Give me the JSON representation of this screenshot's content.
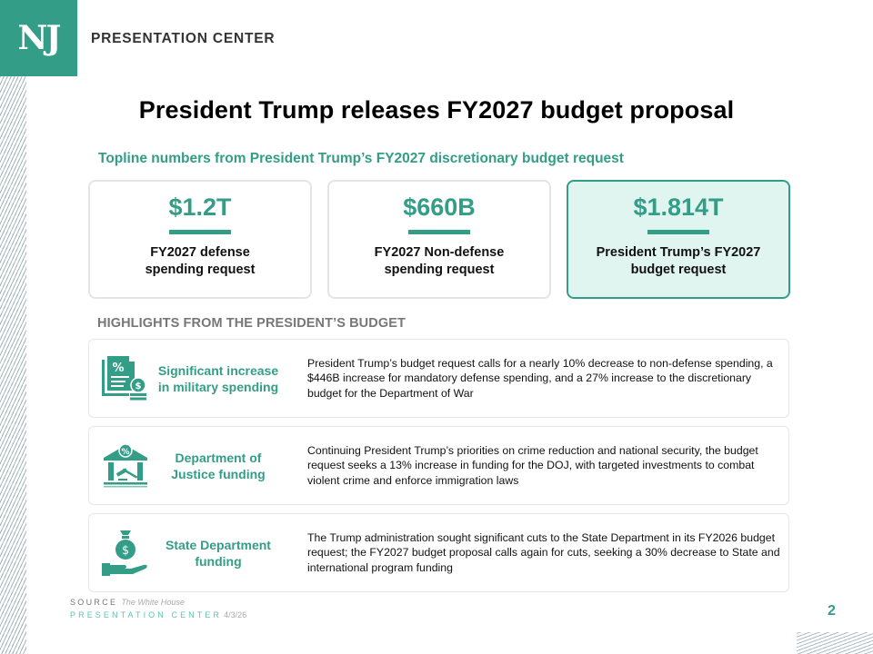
{
  "brand": {
    "logo_text": "NJ",
    "name": "PRESENTATION CENTER"
  },
  "title": "President Trump releases FY2027 budget proposal",
  "subtitle": "Topline numbers from President Trump’s FY2027 discretionary budget request",
  "stats": [
    {
      "value": "$1.2T",
      "label_line1": "FY2027 defense",
      "label_line2": "spending request"
    },
    {
      "value": "$660B",
      "label_line1": "FY2027 Non-defense",
      "label_line2": "spending request"
    },
    {
      "value": "$1.814T",
      "label_line1": "President Trump’s FY2027",
      "label_line2": "budget request"
    }
  ],
  "highlights_heading": "HIGHLIGHTS FROM THE PRESIDENT’S BUDGET",
  "highlights": [
    {
      "icon": "document-percent-dollar-icon",
      "name_line1": "Significant increase",
      "name_line2": "in military spending",
      "description": "President Trump’s budget request calls for a nearly 10% decrease to non-defense spending, a $446B increase for mandatory defense spending, and a 27% increase to the discretionary budget for the Department of War"
    },
    {
      "icon": "courthouse-gavel-icon",
      "name_line1": "Department of",
      "name_line2": "Justice funding",
      "description": "Continuing President Trump’s priorities on crime reduction and national security, the budget request seeks a 13% increase in funding for the DOJ, with targeted investments to combat violent crime and enforce immigration laws"
    },
    {
      "icon": "money-bag-hand-icon",
      "name_line1": "State Department",
      "name_line2": "funding",
      "description": "The Trump administration sought significant cuts to the State Department in its FY2026 budget request; the FY2027 budget proposal calls again for cuts, seeking a 30% decrease to State and international program funding"
    }
  ],
  "footer": {
    "source_label": "SOURCE",
    "source_value": "The White House",
    "center_label": "PRESENTATION CENTER",
    "date": "4/3/26",
    "page_number": "2"
  },
  "colors": {
    "accent": "#339d87",
    "highlight_bg": "#e0f4f0",
    "heading_gray": "#777777"
  }
}
